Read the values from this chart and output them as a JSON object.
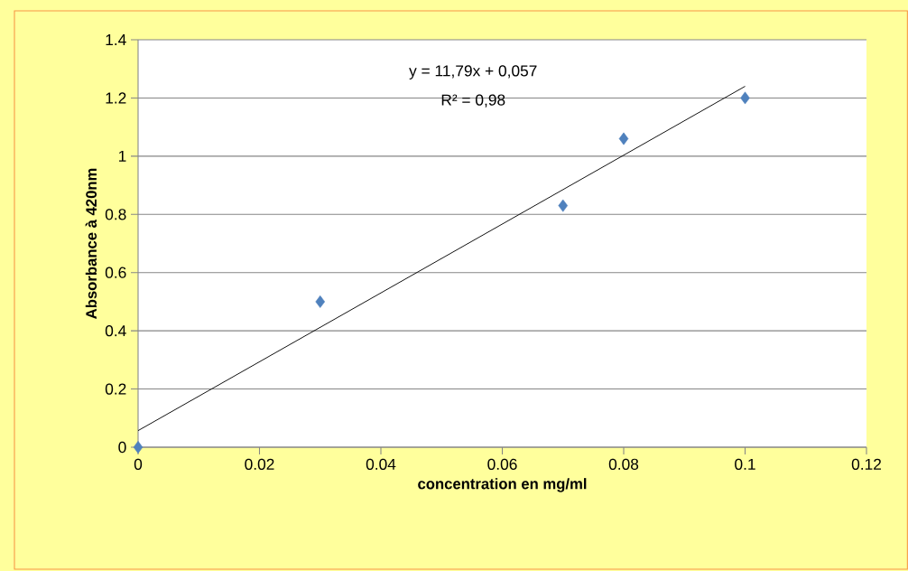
{
  "chart_data": {
    "type": "scatter",
    "xlabel": "concentration en mg/ml",
    "ylabel": "Absorbance à  420nm",
    "annotations": [
      "y = 11,79x + 0,057",
      "R² = 0,98"
    ],
    "series": [
      {
        "color": "#4f81bd",
        "marker": "diamond",
        "x": [
          0,
          0.03,
          0.07,
          0.08,
          0.1
        ],
        "values": [
          0,
          0.5,
          0.83,
          1.06,
          1.2
        ]
      },
      {
        "type": "line",
        "color": "#000000",
        "marker": "none",
        "x": [
          0,
          0.1
        ],
        "values": [
          0.057,
          1.24
        ]
      }
    ],
    "xlim": [
      0,
      0.12
    ],
    "xticks": [
      0,
      0.02,
      0.04,
      0.06,
      0.08,
      0.1,
      0.12
    ],
    "ylim": [
      0,
      1.4
    ],
    "yticks": [
      0,
      0.2,
      0.4,
      0.6,
      0.8,
      1,
      1.2,
      1.4
    ],
    "grid": "y"
  }
}
